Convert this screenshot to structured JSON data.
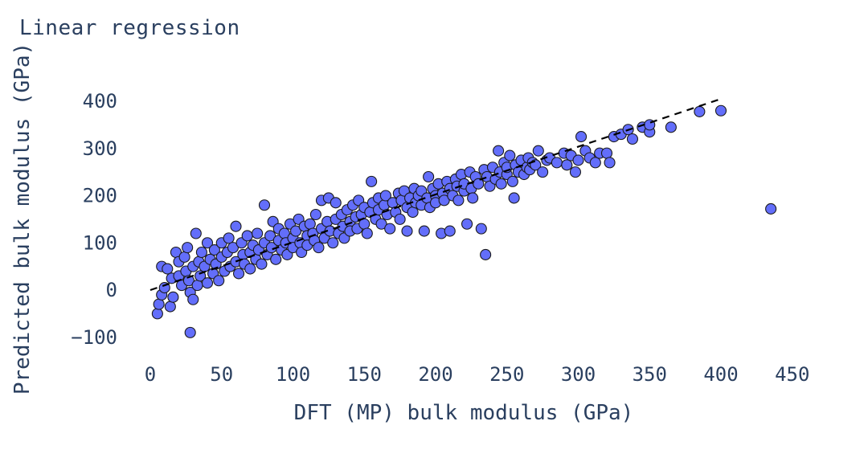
{
  "chart_data": {
    "type": "scatter",
    "title": "Linear regression",
    "xlabel": "DFT (MP) bulk modulus (GPa)",
    "ylabel": "Predicted bulk modulus (GPa)",
    "xlim": [
      -5,
      460
    ],
    "ylim": [
      -130,
      440
    ],
    "x_ticks": [
      0,
      50,
      100,
      150,
      200,
      250,
      300,
      350,
      400,
      450
    ],
    "y_ticks": [
      -100,
      0,
      100,
      200,
      300,
      400
    ],
    "grid": false,
    "legend": "none",
    "colors": {
      "marker": "#636efa",
      "marker_edge": "#1a1a1a",
      "text": "#2a3f5f",
      "reference_line": "#000000"
    },
    "reference_line": {
      "style": "dashed",
      "points": [
        [
          0,
          0
        ],
        [
          400,
          405
        ]
      ]
    },
    "series": [
      {
        "points": [
          [
            5,
            -50
          ],
          [
            6,
            -30
          ],
          [
            8,
            50
          ],
          [
            8,
            -10
          ],
          [
            10,
            5
          ],
          [
            12,
            45
          ],
          [
            14,
            -35
          ],
          [
            15,
            25
          ],
          [
            16,
            -15
          ],
          [
            18,
            80
          ],
          [
            20,
            30
          ],
          [
            20,
            60
          ],
          [
            22,
            10
          ],
          [
            24,
            70
          ],
          [
            25,
            40
          ],
          [
            26,
            90
          ],
          [
            27,
            20
          ],
          [
            28,
            -5
          ],
          [
            28,
            -90
          ],
          [
            30,
            -20
          ],
          [
            30,
            50
          ],
          [
            32,
            120
          ],
          [
            33,
            10
          ],
          [
            34,
            60
          ],
          [
            35,
            30
          ],
          [
            36,
            80
          ],
          [
            38,
            50
          ],
          [
            40,
            15
          ],
          [
            40,
            100
          ],
          [
            42,
            65
          ],
          [
            44,
            35
          ],
          [
            45,
            85
          ],
          [
            46,
            55
          ],
          [
            48,
            20
          ],
          [
            50,
            70
          ],
          [
            50,
            100
          ],
          [
            52,
            40
          ],
          [
            54,
            80
          ],
          [
            55,
            110
          ],
          [
            56,
            50
          ],
          [
            58,
            90
          ],
          [
            60,
            60
          ],
          [
            60,
            135
          ],
          [
            62,
            35
          ],
          [
            64,
            100
          ],
          [
            65,
            75
          ],
          [
            66,
            55
          ],
          [
            68,
            115
          ],
          [
            70,
            80
          ],
          [
            70,
            45
          ],
          [
            72,
            95
          ],
          [
            74,
            65
          ],
          [
            75,
            120
          ],
          [
            76,
            85
          ],
          [
            78,
            55
          ],
          [
            80,
            100
          ],
          [
            80,
            180
          ],
          [
            82,
            75
          ],
          [
            84,
            115
          ],
          [
            85,
            90
          ],
          [
            86,
            145
          ],
          [
            88,
            65
          ],
          [
            90,
            105
          ],
          [
            90,
            130
          ],
          [
            92,
            85
          ],
          [
            94,
            120
          ],
          [
            95,
            100
          ],
          [
            96,
            75
          ],
          [
            98,
            140
          ],
          [
            100,
            110
          ],
          [
            100,
            90
          ],
          [
            102,
            125
          ],
          [
            104,
            150
          ],
          [
            105,
            100
          ],
          [
            106,
            80
          ],
          [
            108,
            135
          ],
          [
            110,
            115
          ],
          [
            110,
            95
          ],
          [
            112,
            140
          ],
          [
            114,
            120
          ],
          [
            115,
            105
          ],
          [
            116,
            160
          ],
          [
            118,
            90
          ],
          [
            120,
            130
          ],
          [
            120,
            190
          ],
          [
            122,
            110
          ],
          [
            124,
            145
          ],
          [
            125,
            195
          ],
          [
            126,
            125
          ],
          [
            128,
            100
          ],
          [
            130,
            150
          ],
          [
            130,
            185
          ],
          [
            132,
            120
          ],
          [
            134,
            160
          ],
          [
            135,
            135
          ],
          [
            136,
            110
          ],
          [
            138,
            170
          ],
          [
            140,
            145
          ],
          [
            140,
            125
          ],
          [
            142,
            180
          ],
          [
            144,
            155
          ],
          [
            145,
            130
          ],
          [
            146,
            190
          ],
          [
            148,
            160
          ],
          [
            150,
            140
          ],
          [
            150,
            175
          ],
          [
            152,
            120
          ],
          [
            154,
            165
          ],
          [
            155,
            230
          ],
          [
            156,
            185
          ],
          [
            158,
            150
          ],
          [
            160,
            170
          ],
          [
            160,
            195
          ],
          [
            162,
            140
          ],
          [
            164,
            180
          ],
          [
            165,
            200
          ],
          [
            166,
            160
          ],
          [
            168,
            130
          ],
          [
            170,
            185
          ],
          [
            172,
            165
          ],
          [
            174,
            205
          ],
          [
            175,
            150
          ],
          [
            176,
            190
          ],
          [
            178,
            210
          ],
          [
            180,
            175
          ],
          [
            180,
            125
          ],
          [
            182,
            195
          ],
          [
            184,
            165
          ],
          [
            185,
            215
          ],
          [
            186,
            185
          ],
          [
            188,
            200
          ],
          [
            190,
            180
          ],
          [
            190,
            210
          ],
          [
            192,
            125
          ],
          [
            194,
            195
          ],
          [
            195,
            240
          ],
          [
            196,
            175
          ],
          [
            198,
            215
          ],
          [
            200,
            200
          ],
          [
            200,
            185
          ],
          [
            202,
            225
          ],
          [
            204,
            120
          ],
          [
            205,
            205
          ],
          [
            206,
            190
          ],
          [
            208,
            230
          ],
          [
            210,
            215
          ],
          [
            210,
            125
          ],
          [
            212,
            200
          ],
          [
            214,
            235
          ],
          [
            215,
            220
          ],
          [
            216,
            190
          ],
          [
            218,
            245
          ],
          [
            220,
            210
          ],
          [
            220,
            225
          ],
          [
            222,
            140
          ],
          [
            224,
            250
          ],
          [
            225,
            215
          ],
          [
            226,
            195
          ],
          [
            228,
            240
          ],
          [
            230,
            225
          ],
          [
            232,
            130
          ],
          [
            234,
            255
          ],
          [
            235,
            75
          ],
          [
            236,
            240
          ],
          [
            238,
            220
          ],
          [
            240,
            260
          ],
          [
            242,
            235
          ],
          [
            244,
            295
          ],
          [
            245,
            250
          ],
          [
            246,
            225
          ],
          [
            248,
            270
          ],
          [
            250,
            245
          ],
          [
            250,
            260
          ],
          [
            252,
            285
          ],
          [
            254,
            230
          ],
          [
            255,
            195
          ],
          [
            256,
            265
          ],
          [
            258,
            250
          ],
          [
            260,
            275
          ],
          [
            262,
            245
          ],
          [
            264,
            260
          ],
          [
            265,
            280
          ],
          [
            266,
            255
          ],
          [
            268,
            270
          ],
          [
            270,
            265
          ],
          [
            272,
            295
          ],
          [
            275,
            250
          ],
          [
            278,
            275
          ],
          [
            280,
            280
          ],
          [
            285,
            270
          ],
          [
            290,
            290
          ],
          [
            292,
            265
          ],
          [
            295,
            285
          ],
          [
            298,
            250
          ],
          [
            300,
            275
          ],
          [
            302,
            325
          ],
          [
            305,
            295
          ],
          [
            308,
            280
          ],
          [
            312,
            270
          ],
          [
            315,
            290
          ],
          [
            320,
            290
          ],
          [
            322,
            270
          ],
          [
            325,
            325
          ],
          [
            330,
            330
          ],
          [
            335,
            340
          ],
          [
            338,
            320
          ],
          [
            345,
            345
          ],
          [
            350,
            335
          ],
          [
            350,
            350
          ],
          [
            365,
            345
          ],
          [
            385,
            378
          ],
          [
            400,
            380
          ],
          [
            435,
            172
          ]
        ]
      }
    ]
  }
}
